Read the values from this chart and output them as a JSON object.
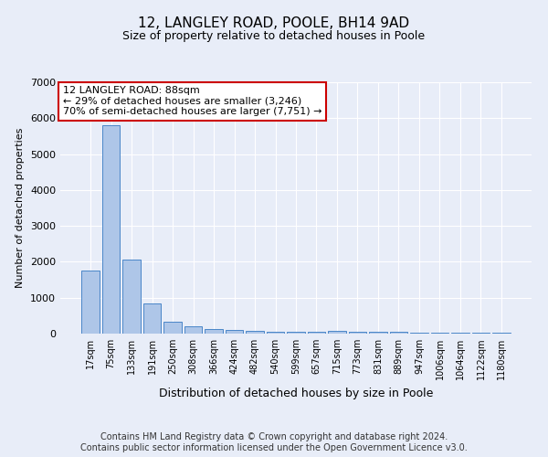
{
  "title": "12, LANGLEY ROAD, POOLE, BH14 9AD",
  "subtitle": "Size of property relative to detached houses in Poole",
  "xlabel": "Distribution of detached houses by size in Poole",
  "ylabel": "Number of detached properties",
  "categories": [
    "17sqm",
    "75sqm",
    "133sqm",
    "191sqm",
    "250sqm",
    "308sqm",
    "366sqm",
    "424sqm",
    "482sqm",
    "540sqm",
    "599sqm",
    "657sqm",
    "715sqm",
    "773sqm",
    "831sqm",
    "889sqm",
    "947sqm",
    "1006sqm",
    "1064sqm",
    "1122sqm",
    "1180sqm"
  ],
  "values": [
    1760,
    5800,
    2060,
    830,
    340,
    195,
    140,
    100,
    85,
    55,
    45,
    45,
    75,
    45,
    40,
    40,
    35,
    35,
    30,
    25,
    20
  ],
  "bar_color": "#aec6e8",
  "bar_edge_color": "#4a86c8",
  "annotation_box_text": "12 LANGLEY ROAD: 88sqm\n← 29% of detached houses are smaller (3,246)\n70% of semi-detached houses are larger (7,751) →",
  "annotation_box_color": "#ffffff",
  "annotation_box_edge_color": "#cc0000",
  "ylim": [
    0,
    7000
  ],
  "yticks": [
    0,
    1000,
    2000,
    3000,
    4000,
    5000,
    6000,
    7000
  ],
  "bg_color": "#e8edf8",
  "grid_color": "#ffffff",
  "footer_line1": "Contains HM Land Registry data © Crown copyright and database right 2024.",
  "footer_line2": "Contains public sector information licensed under the Open Government Licence v3.0.",
  "title_fontsize": 11,
  "subtitle_fontsize": 9,
  "annotation_fontsize": 8,
  "footer_fontsize": 7
}
